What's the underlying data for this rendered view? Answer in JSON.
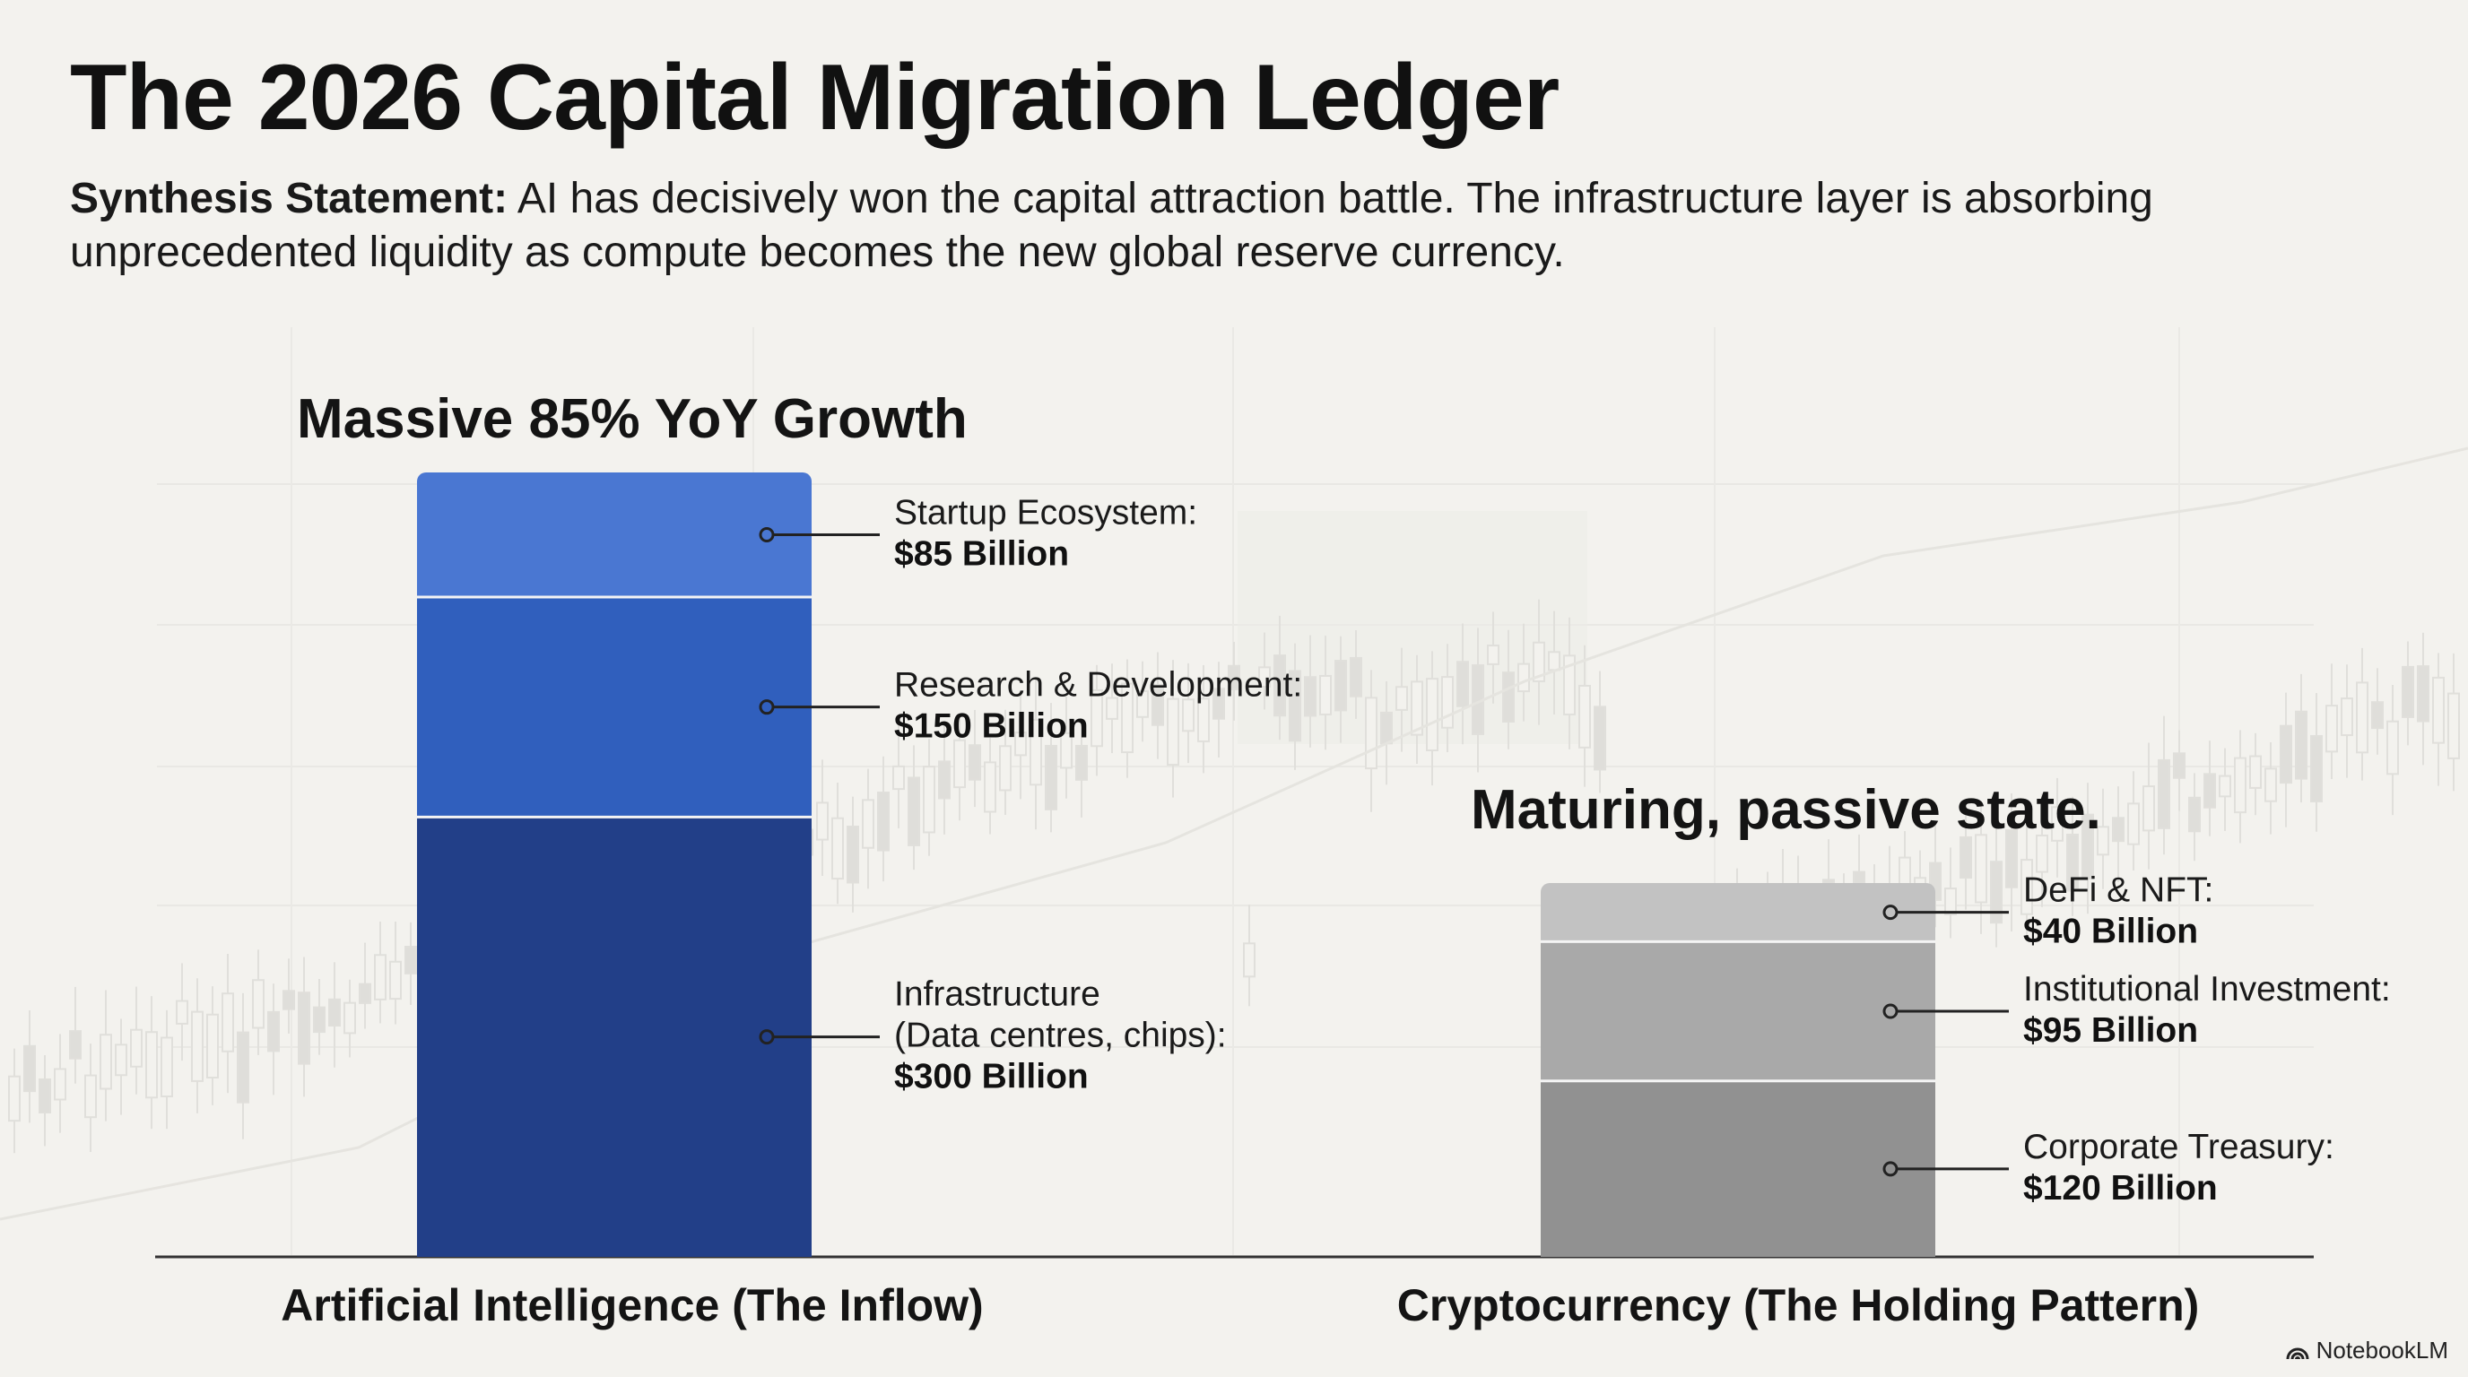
{
  "header": {
    "title": "The 2026 Capital Migration Ledger",
    "statement_label": "Synthesis Statement:",
    "statement_text": "AI has decisively won the capital attraction battle. The infrastructure layer is absorbing unprecedented liquidity as compute becomes the new global reserve currency."
  },
  "footer": {
    "logo_text": "NotebookLM",
    "logo_icon": "notebooklm-icon"
  },
  "colors": {
    "ai_top": "#4a77d2",
    "ai_mid": "#305fbd",
    "ai_bottom": "#223f88",
    "crypto_top": "#c2c2c2",
    "crypto_mid": "#a9a9a9",
    "crypto_bottom": "#919191",
    "baseline": "#333333"
  },
  "chart_data": {
    "type": "bar",
    "stacked": true,
    "unit": "Billion",
    "categories": [
      "Artificial Intelligence (The Inflow)",
      "Cryptocurrency (The Holding Pattern)"
    ],
    "annotations": [
      "Massive 85% YoY Growth",
      "Maturing, passive state."
    ],
    "stacks": [
      {
        "category": "Artificial Intelligence (The Inflow)",
        "segments": [
          {
            "label": "Infrastructure\n(Data centres, chips):",
            "value": 300,
            "value_label": "$300 Billion"
          },
          {
            "label": "Research & Development:",
            "value": 150,
            "value_label": "$150 Billion"
          },
          {
            "label": "Startup Ecosystem:",
            "value": 85,
            "value_label": "$85 Billion"
          }
        ]
      },
      {
        "category": "Cryptocurrency (The Holding Pattern)",
        "segments": [
          {
            "label": "Corporate Treasury:",
            "value": 120,
            "value_label": "$120 Billion"
          },
          {
            "label": "Institutional Investment:",
            "value": 95,
            "value_label": "$95 Billion"
          },
          {
            "label": "DeFi & NFT:",
            "value": 40,
            "value_label": "$40 Billion"
          }
        ]
      }
    ],
    "grid": false,
    "legend": "none"
  }
}
